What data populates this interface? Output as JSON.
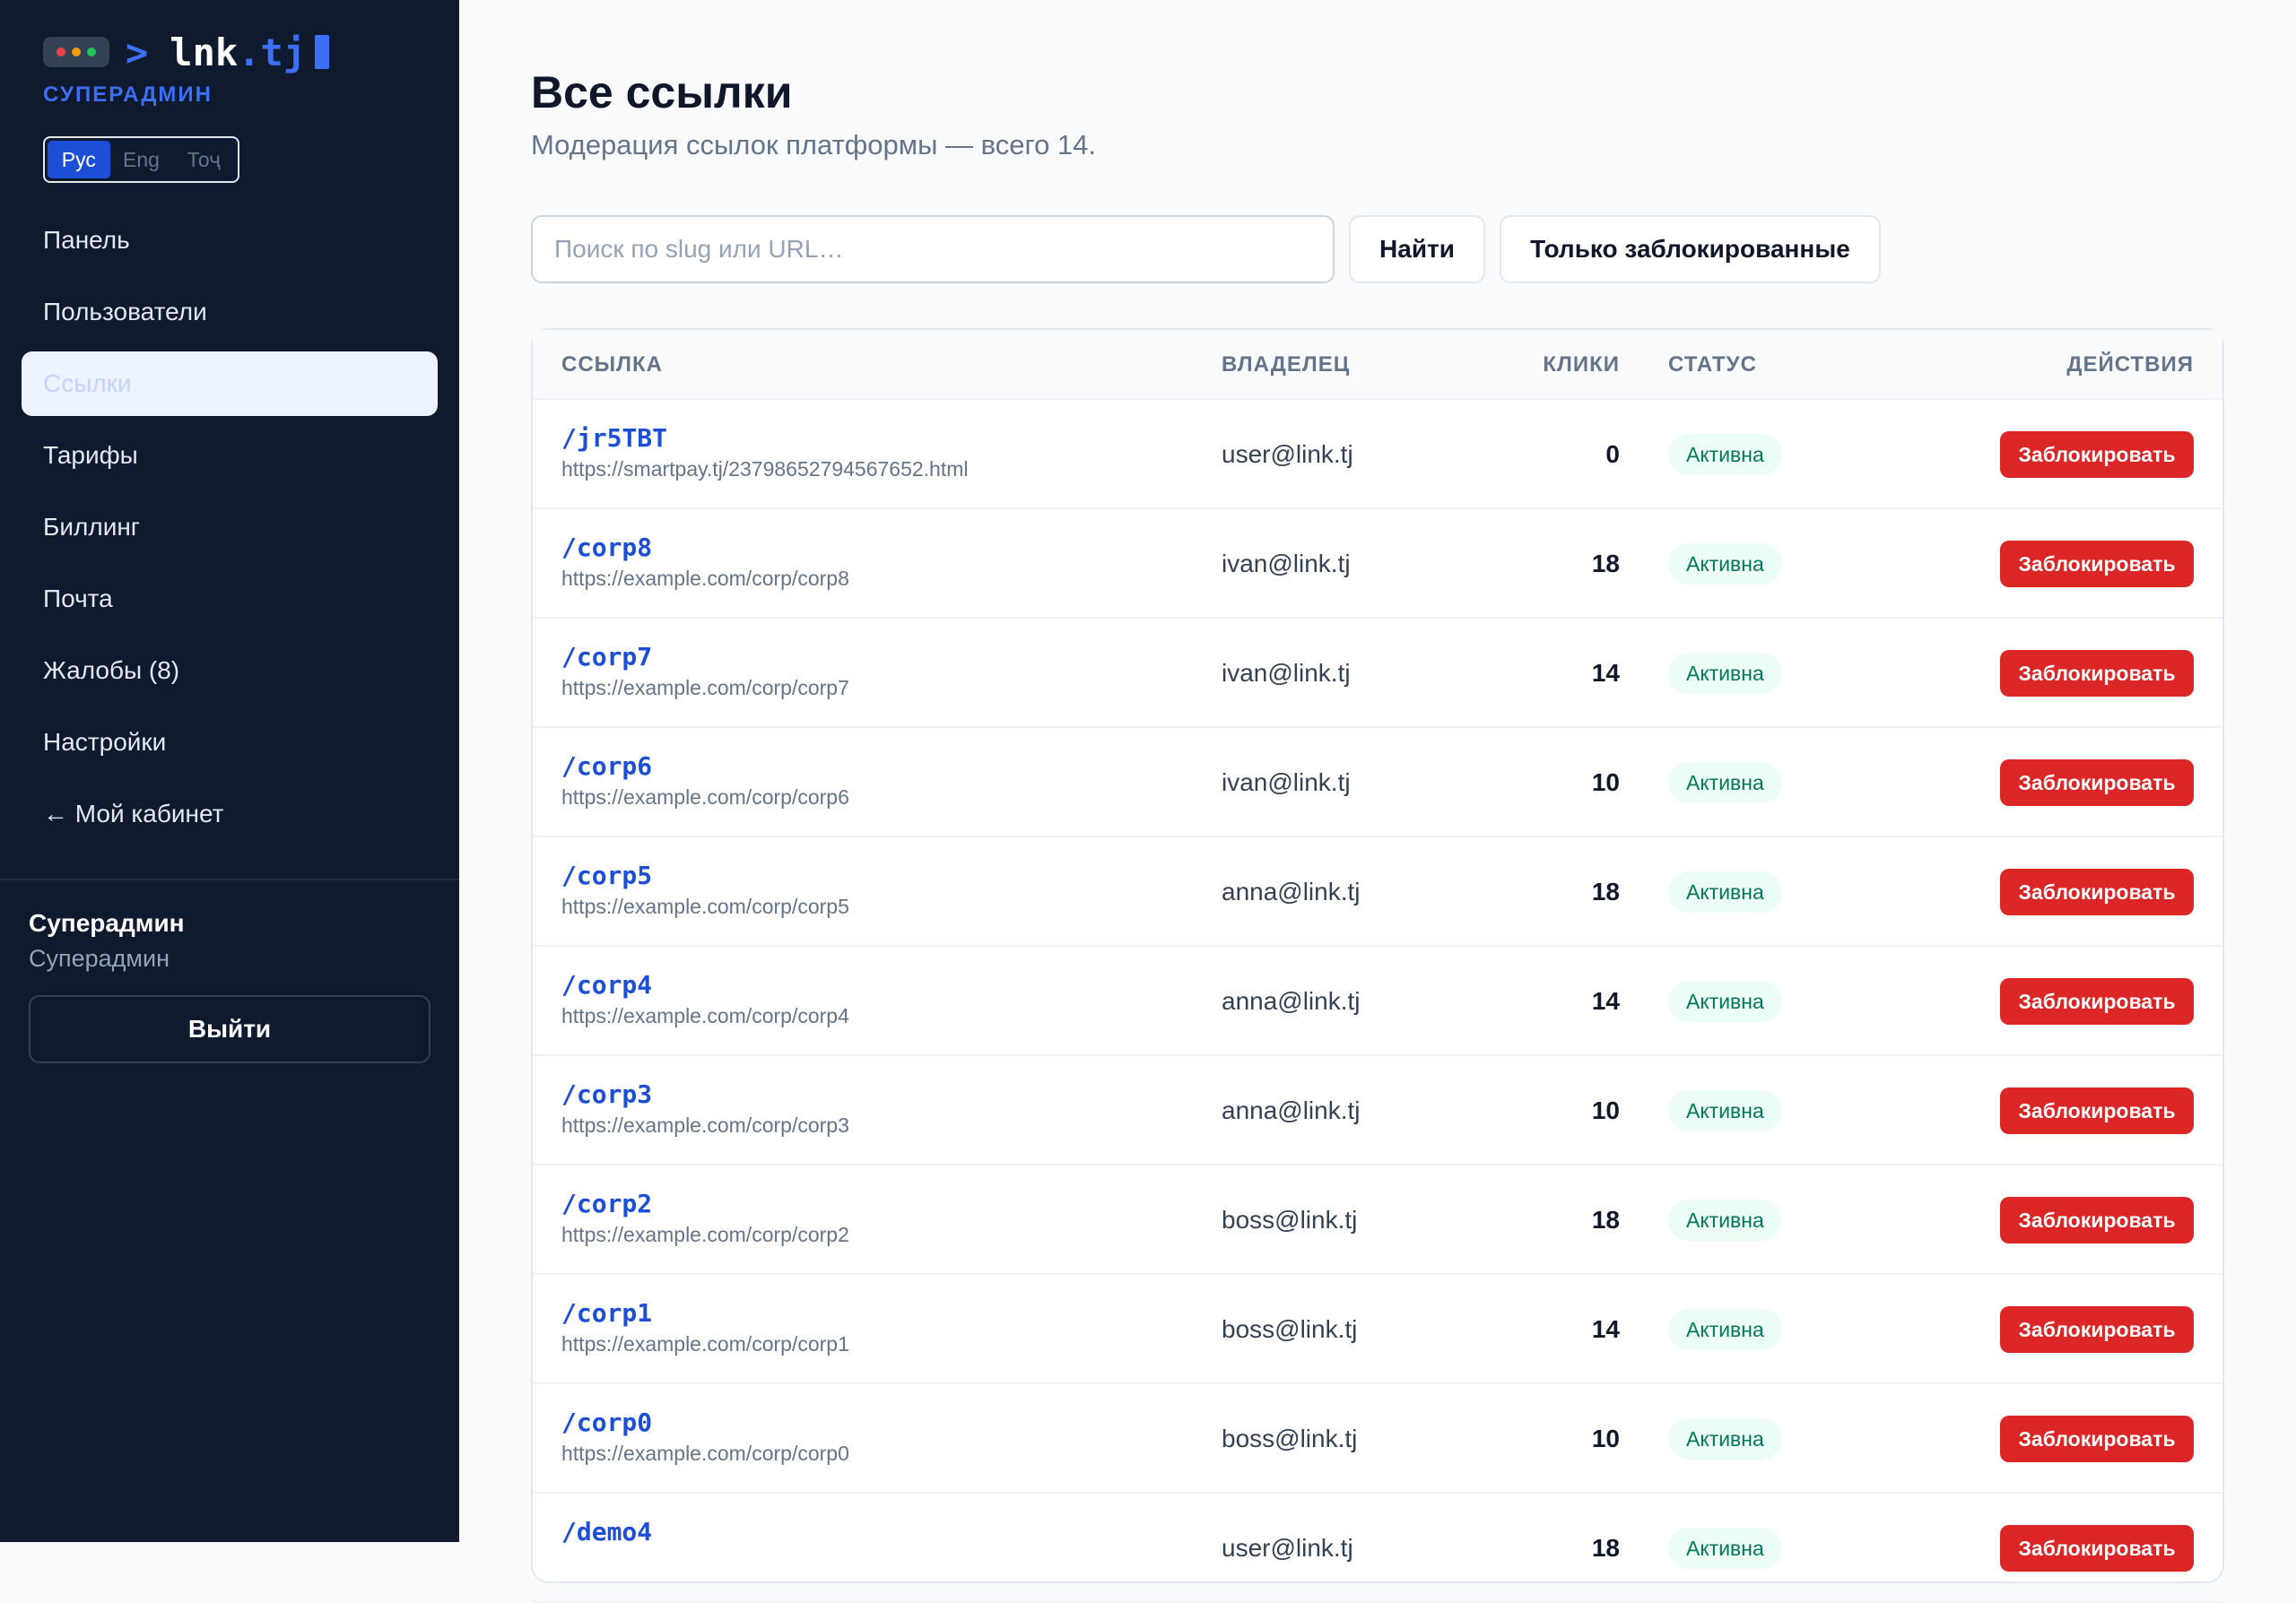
{
  "brand": {
    "prompt": ">",
    "name": "lnk",
    "tld": ".tj",
    "role": "СУПЕРАДМИН",
    "dot_colors": [
      "#ef4444",
      "#f59e0b",
      "#22c55e"
    ]
  },
  "languages": [
    {
      "label": "Рус",
      "active": true
    },
    {
      "label": "Eng",
      "active": false
    },
    {
      "label": "Тоҷ",
      "active": false
    }
  ],
  "nav": [
    {
      "label": "Панель",
      "active": false
    },
    {
      "label": "Пользователи",
      "active": false
    },
    {
      "label": "Ссылки",
      "active": true
    },
    {
      "label": "Тарифы",
      "active": false
    },
    {
      "label": "Биллинг",
      "active": false
    },
    {
      "label": "Почта",
      "active": false
    },
    {
      "label": "Жалобы (8)",
      "active": false
    },
    {
      "label": "Настройки",
      "active": false
    },
    {
      "label": "← Мой кабинет",
      "active": false
    }
  ],
  "user": {
    "name": "Суперадмин",
    "role": "Суперадмин",
    "logout_label": "Выйти"
  },
  "page": {
    "title": "Все ссылки",
    "subtitle": "Модерация ссылок платформы — всего 14."
  },
  "search": {
    "placeholder": "Поиск по slug или URL…",
    "value": ""
  },
  "buttons": {
    "find": "Найти",
    "only_blocked": "Только заблокированные"
  },
  "table": {
    "headers": {
      "link": "ССЫЛКА",
      "owner": "ВЛАДЕЛЕЦ",
      "clicks": "КЛИКИ",
      "status": "СТАТУС",
      "actions": "ДЕЙСТВИЯ"
    },
    "rows": [
      {
        "slug": "/jr5TBT",
        "url": "https://smartpay.tj/23798652794567652.html",
        "owner": "user@link.tj",
        "clicks": "0",
        "status": "Активна",
        "action": "Заблокировать"
      },
      {
        "slug": "/corp8",
        "url": "https://example.com/corp/corp8",
        "owner": "ivan@link.tj",
        "clicks": "18",
        "status": "Активна",
        "action": "Заблокировать"
      },
      {
        "slug": "/corp7",
        "url": "https://example.com/corp/corp7",
        "owner": "ivan@link.tj",
        "clicks": "14",
        "status": "Активна",
        "action": "Заблокировать"
      },
      {
        "slug": "/corp6",
        "url": "https://example.com/corp/corp6",
        "owner": "ivan@link.tj",
        "clicks": "10",
        "status": "Активна",
        "action": "Заблокировать"
      },
      {
        "slug": "/corp5",
        "url": "https://example.com/corp/corp5",
        "owner": "anna@link.tj",
        "clicks": "18",
        "status": "Активна",
        "action": "Заблокировать"
      },
      {
        "slug": "/corp4",
        "url": "https://example.com/corp/corp4",
        "owner": "anna@link.tj",
        "clicks": "14",
        "status": "Активна",
        "action": "Заблокировать"
      },
      {
        "slug": "/corp3",
        "url": "https://example.com/corp/corp3",
        "owner": "anna@link.tj",
        "clicks": "10",
        "status": "Активна",
        "action": "Заблокировать"
      },
      {
        "slug": "/corp2",
        "url": "https://example.com/corp/corp2",
        "owner": "boss@link.tj",
        "clicks": "18",
        "status": "Активна",
        "action": "Заблокировать"
      },
      {
        "slug": "/corp1",
        "url": "https://example.com/corp/corp1",
        "owner": "boss@link.tj",
        "clicks": "14",
        "status": "Активна",
        "action": "Заблокировать"
      },
      {
        "slug": "/corp0",
        "url": "https://example.com/corp/corp0",
        "owner": "boss@link.tj",
        "clicks": "10",
        "status": "Активна",
        "action": "Заблокировать"
      },
      {
        "slug": "/demo4",
        "url": "",
        "owner": "user@link.tj",
        "clicks": "18",
        "status": "Активна",
        "action": "Заблокировать"
      }
    ]
  }
}
